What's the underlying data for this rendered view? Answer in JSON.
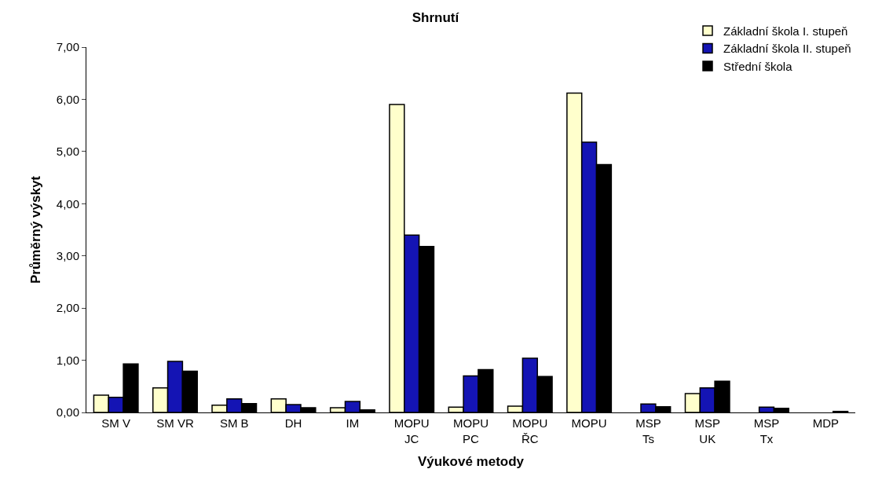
{
  "chart_data": {
    "type": "bar",
    "title": "Shrnutí",
    "xlabel": "Výukové metody",
    "ylabel": "Průměrný výskyt",
    "categories": [
      "SM V",
      "SM VR",
      "SM B",
      "DH",
      "IM",
      "MOPU\nJC",
      "MOPU\nPC",
      "MOPU\nŘC",
      "MOPU",
      "MSP\nTs",
      "MSP\nUK",
      "MSP\nTx",
      "MDP"
    ],
    "series": [
      {
        "name": "Základní škola I. stupeň",
        "color": "#ffffcc",
        "values": [
          0.33,
          0.47,
          0.14,
          0.26,
          0.09,
          5.9,
          0.1,
          0.12,
          6.12,
          null,
          0.36,
          null,
          null
        ]
      },
      {
        "name": "Základní škola II. stupeň",
        "color": "#1414b4",
        "values": [
          0.29,
          0.98,
          0.26,
          0.15,
          0.21,
          3.4,
          0.7,
          1.04,
          5.18,
          0.16,
          0.47,
          0.1,
          null
        ]
      },
      {
        "name": "Střední škola",
        "color": "#000000",
        "values": [
          0.93,
          0.79,
          0.17,
          0.09,
          0.05,
          3.18,
          0.82,
          0.69,
          4.75,
          0.11,
          0.6,
          0.08,
          0.02
        ]
      }
    ],
    "ylim": [
      0,
      7
    ],
    "yticks": [
      {
        "value": 0,
        "label": "0,00"
      },
      {
        "value": 1,
        "label": "1,00"
      },
      {
        "value": 2,
        "label": "2,00"
      },
      {
        "value": 3,
        "label": "3,00"
      },
      {
        "value": 4,
        "label": "4,00"
      },
      {
        "value": 5,
        "label": "5,00"
      },
      {
        "value": 6,
        "label": "6,00"
      },
      {
        "value": 7,
        "label": "7,00"
      }
    ],
    "legend": "top right"
  }
}
